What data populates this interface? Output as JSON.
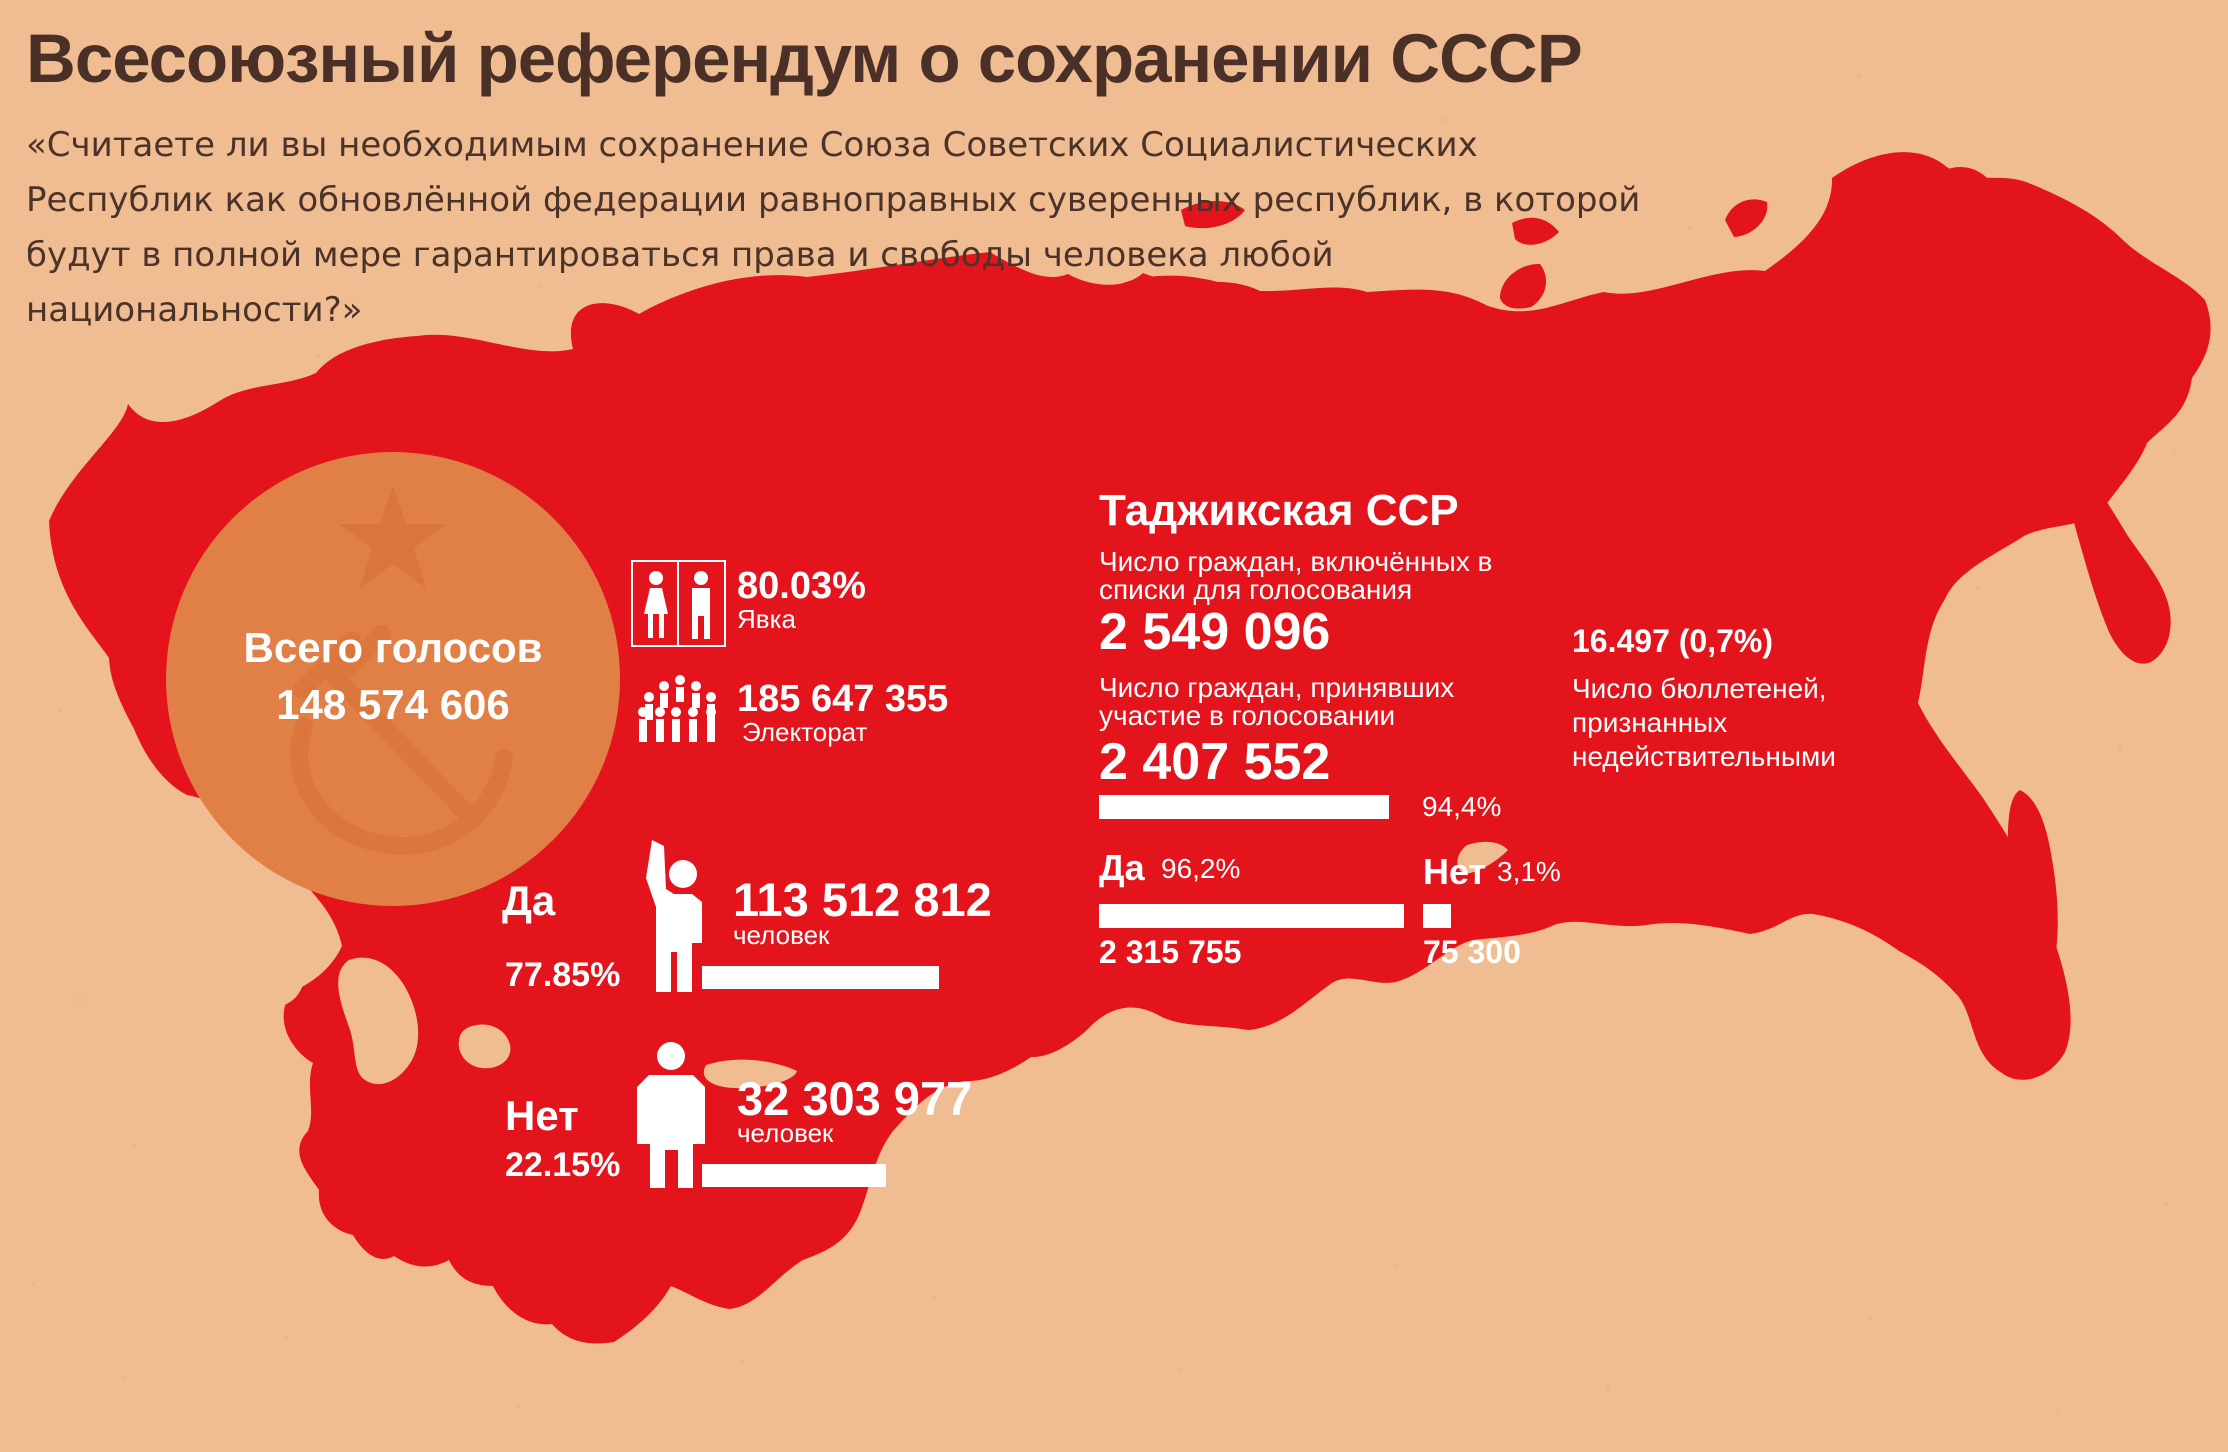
{
  "header": {
    "title": "Всесоюзный референдум о сохранении СССР",
    "question": "«Считаете ли вы необходимым сохранение Союза Советских Социалистических Республик как обновлённой федерации равноправных суверенных республик, в которой будут в полной мере гарантироваться права и свободы человека любой национальности?»"
  },
  "totals": {
    "title": "Всего голосов",
    "value": "148 574 606",
    "icons": [
      "star-icon",
      "hammer-sickle-icon"
    ]
  },
  "turnout": {
    "value": "80.03%",
    "label": "Явка",
    "icon": "voters-booth-icon"
  },
  "electorate": {
    "value": "185 647 355",
    "label": "Электорат",
    "icon": "crowd-icon"
  },
  "union_vote": {
    "yes": {
      "label": "Да",
      "value": "113 512 812",
      "unit": "человек",
      "percent": "77.85%",
      "share": 0.7785,
      "icon": "raised-hand-person-icon"
    },
    "no": {
      "label": "Нет",
      "value": "32 303 977",
      "unit": "человек",
      "percent": "22.15%",
      "share": 0.2215,
      "icon": "standing-person-icon"
    }
  },
  "tajik": {
    "title": "Таджикская ССР",
    "registered_label": "Число граждан, включённых в списки для голосования",
    "registered_value": "2 549 096",
    "participated_label": "Число граждан, принявших участие в голосовании",
    "participated_value": "2 407 552",
    "participated_percent": "94,4%",
    "participated_share": 0.944,
    "yes_label": "Да",
    "yes_percent": "96,2%",
    "yes_value": "2 315 755",
    "yes_share": 0.962,
    "no_label": "Нет",
    "no_percent": "3,1%",
    "no_value": "75 300",
    "no_share": 0.031
  },
  "invalid": {
    "value": "16.497 (0,7%)",
    "label": "Число бюллетеней, признанных недействительными"
  },
  "colors": {
    "background": "#f0bd93",
    "map_red": "#e3141c",
    "circle_orange": "#e18046",
    "title": "#4a3027",
    "white": "#ffffff"
  }
}
